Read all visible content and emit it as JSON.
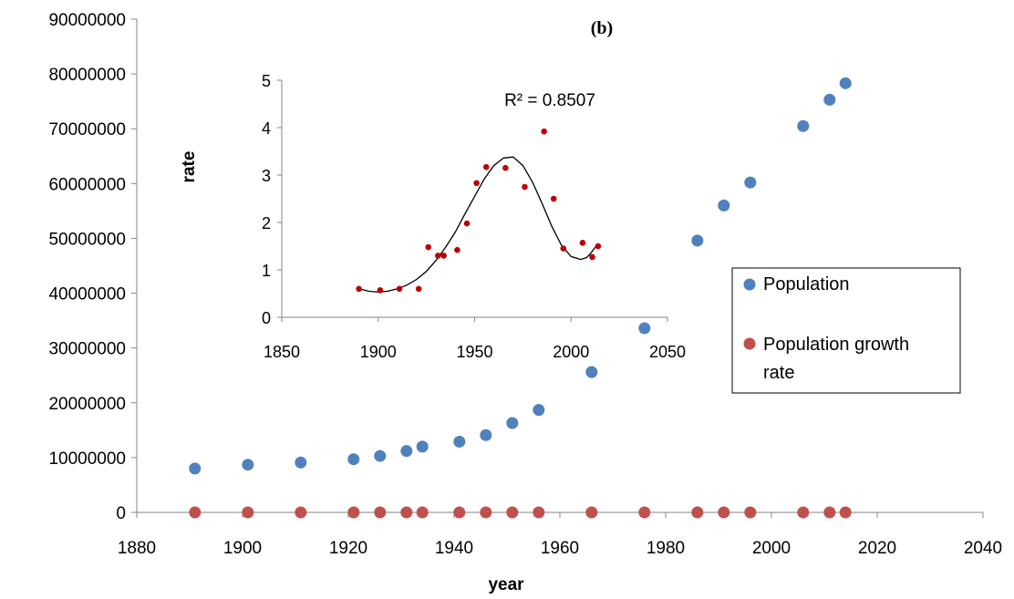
{
  "chart_data": [
    {
      "type": "scatter",
      "xlabel": "year",
      "ylabel": "",
      "xlim": [
        1880,
        2040
      ],
      "ylim": [
        0,
        90000000
      ],
      "x_ticks": [
        "1880",
        "1900",
        "1920",
        "1940",
        "1960",
        "1980",
        "2000",
        "2020",
        "2040"
      ],
      "y_ticks": [
        "0",
        "10000000",
        "20000000",
        "30000000",
        "40000000",
        "50000000",
        "60000000",
        "70000000",
        "80000000",
        "90000000"
      ],
      "panel_label": "(b)",
      "legend": {
        "position": "right",
        "entries": [
          "Population",
          "Population growth rate"
        ]
      },
      "series": [
        {
          "name": "Population",
          "color": "#4F81BD",
          "x": [
            1891,
            1901,
            1911,
            1921,
            1926,
            1931,
            1934,
            1941,
            1946,
            1951,
            1956,
            1966,
            1976,
            1986,
            1991,
            1996,
            2006,
            2011,
            2014
          ],
          "y": [
            8000000,
            8700000,
            9100000,
            9700000,
            10300000,
            11200000,
            12000000,
            12900000,
            14100000,
            16300000,
            18700000,
            25600000,
            33600000,
            49600000,
            56000000,
            60200000,
            70500000,
            75300000,
            78300000
          ]
        },
        {
          "name": "Population growth rate",
          "color": "#C0504D",
          "x": [
            1891,
            1901,
            1911,
            1921,
            1926,
            1931,
            1934,
            1941,
            1946,
            1951,
            1956,
            1966,
            1976,
            1986,
            1991,
            1996,
            2006,
            2011,
            2014
          ],
          "y": [
            0,
            0,
            0,
            0,
            0,
            0,
            0,
            0,
            0,
            0,
            0,
            0,
            0,
            0,
            0,
            0,
            0,
            0,
            0
          ]
        }
      ]
    },
    {
      "type": "scatter",
      "xlabel": "",
      "ylabel": "rate",
      "xlim": [
        1850,
        2050
      ],
      "ylim": [
        0,
        5
      ],
      "x_ticks": [
        "1850",
        "1900",
        "1950",
        "2000",
        "2050"
      ],
      "y_ticks": [
        "0",
        "1",
        "2",
        "3",
        "4",
        "5"
      ],
      "annotation": "R² = 0.8507",
      "series": [
        {
          "name": "",
          "color": "#C00000",
          "x": [
            1890,
            1901,
            1911,
            1921,
            1926,
            1931,
            1934,
            1941,
            1946,
            1951,
            1956,
            1966,
            1976,
            1986,
            1991,
            1996,
            2006,
            2011,
            2014
          ],
          "y": [
            0.6,
            0.57,
            0.6,
            0.6,
            1.48,
            1.3,
            1.3,
            1.42,
            1.98,
            2.83,
            3.17,
            3.15,
            2.75,
            3.92,
            2.5,
            1.45,
            1.57,
            1.27,
            1.5
          ]
        }
      ],
      "trendline": {
        "x": [
          1890,
          1895,
          1900,
          1905,
          1910,
          1915,
          1920,
          1925,
          1930,
          1935,
          1940,
          1945,
          1950,
          1955,
          1960,
          1965,
          1970,
          1975,
          1980,
          1985,
          1990,
          1995,
          2000,
          2005,
          2008,
          2010,
          2012,
          2014
        ],
        "y": [
          0.6,
          0.55,
          0.53,
          0.55,
          0.6,
          0.68,
          0.8,
          0.97,
          1.2,
          1.48,
          1.8,
          2.18,
          2.55,
          2.92,
          3.2,
          3.36,
          3.38,
          3.2,
          2.85,
          2.4,
          1.92,
          1.52,
          1.28,
          1.22,
          1.26,
          1.34,
          1.45,
          1.55
        ]
      }
    }
  ]
}
